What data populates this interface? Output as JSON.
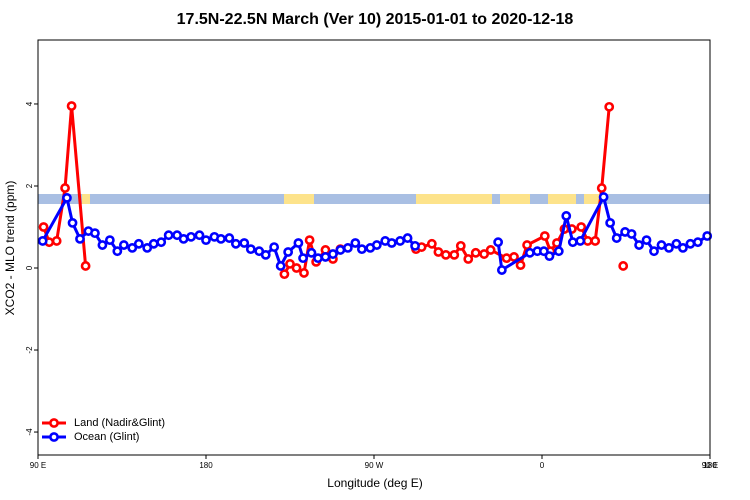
{
  "chart_data": {
    "type": "line",
    "title": "17.5N-22.5N March (Ver 10)   2015-01-01 to 2020-12-18",
    "x_label": "Longitude (deg E)",
    "y_label": "XCO2 - MLO trend (ppm)",
    "xlim": [
      90,
      450
    ],
    "xticks": [
      {
        "value": 90,
        "label": "90 E"
      },
      {
        "value": 180,
        "label": "180"
      },
      {
        "value": 270,
        "label": "90 W"
      },
      {
        "value": 360,
        "label": "0"
      },
      {
        "value": 450,
        "label": "90 E"
      },
      {
        "value": 540,
        "label": "180"
      }
    ],
    "ylim": [
      -4.56,
      5.56
    ],
    "yticks": [
      -4,
      -2,
      0,
      2,
      4
    ],
    "legend": "bottom-left",
    "series": [
      {
        "name": "Land (Nadir&Glint)",
        "color": "#ff0000",
        "x": [
          93,
          96,
          100,
          104.5,
          108,
          115.5,
          null,
          222,
          225,
          228.5,
          232.5,
          235.5,
          239,
          244,
          248,
          252,
          null,
          292.5,
          295.5,
          301,
          304.5,
          308.5,
          313,
          316.5,
          320.5,
          324.5,
          329,
          332.5,
          341,
          345,
          348.5,
          352,
          361.5,
          364.5,
          368,
          372,
          376,
          381,
          384.5,
          388.5,
          392,
          396,
          null,
          403.5
        ],
        "values": [
          1.0,
          0.63,
          0.66,
          1.95,
          3.95,
          0.05,
          null,
          -0.15,
          0.1,
          0,
          -0.12,
          0.68,
          0.15,
          0.44,
          0.22,
          0.46,
          null,
          0.46,
          0.51,
          0.59,
          0.39,
          0.32,
          0.32,
          0.54,
          0.22,
          0.37,
          0.34,
          0.44,
          0.24,
          0.27,
          0.07,
          0.56,
          0.78,
          0.41,
          0.61,
          0.95,
          0.95,
          1.0,
          0.66,
          0.66,
          1.95,
          3.93,
          null,
          0.05
        ]
      },
      {
        "name": "Ocean (Glint)",
        "color": "#0000ff",
        "x": [
          92.5,
          105.5,
          108.5,
          112.5,
          117,
          120.5,
          124.5,
          128.5,
          132.5,
          136,
          140.5,
          144,
          148.5,
          152,
          156,
          160,
          164.5,
          168,
          172,
          176.5,
          180,
          184.5,
          188,
          192.5,
          196,
          200.5,
          204,
          208.5,
          212,
          216.5,
          220,
          224,
          229.5,
          232,
          236.5,
          240,
          244,
          248,
          252,
          256,
          260,
          263.5,
          268,
          271.5,
          276,
          279.5,
          284,
          288,
          292,
          null,
          336.5,
          338.5,
          353.5,
          357.5,
          361,
          364,
          369,
          373,
          376.5,
          380.5,
          393,
          396.5,
          400,
          404.5,
          408,
          412,
          416,
          420,
          424,
          428,
          432,
          435.5,
          439.5,
          443.5,
          448.5
        ],
        "values": [
          0.66,
          1.71,
          1.1,
          0.71,
          0.9,
          0.85,
          0.56,
          0.68,
          0.41,
          0.56,
          0.49,
          0.59,
          0.49,
          0.59,
          0.63,
          0.8,
          0.8,
          0.71,
          0.76,
          0.8,
          0.68,
          0.76,
          0.71,
          0.73,
          0.59,
          0.61,
          0.46,
          0.41,
          0.32,
          0.51,
          0.05,
          0.39,
          0.61,
          0.24,
          0.37,
          0.24,
          0.27,
          0.34,
          0.44,
          0.49,
          0.61,
          0.46,
          0.49,
          0.56,
          0.66,
          0.61,
          0.66,
          0.73,
          0.54,
          null,
          0.63,
          -0.05,
          0.37,
          0.41,
          0.41,
          0.29,
          0.41,
          1.27,
          0.63,
          0.66,
          1.73,
          1.1,
          0.73,
          0.88,
          0.83,
          0.56,
          0.68,
          0.41,
          0.56,
          0.49,
          0.59,
          0.49,
          0.59,
          0.63,
          0.78
        ]
      }
    ]
  }
}
